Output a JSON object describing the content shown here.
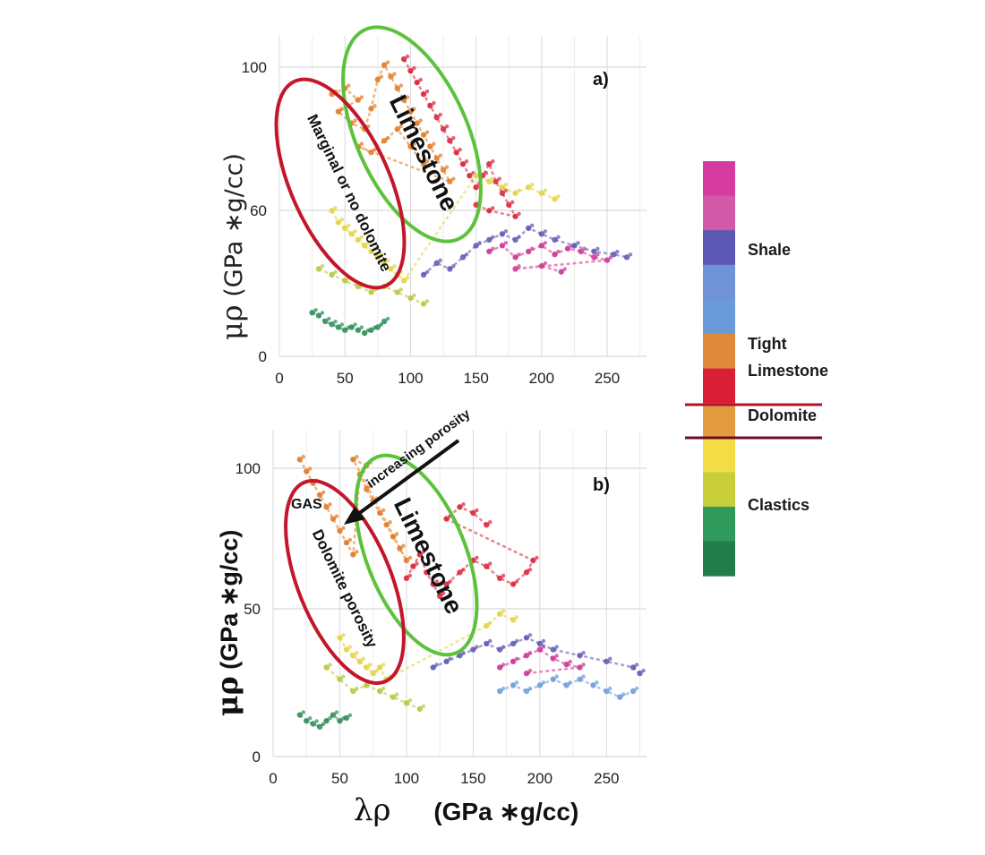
{
  "chart_data": [
    {
      "type": "scatter",
      "panel_label": "a)",
      "ylabel_symbol": "μρ",
      "ylabel_unit": "(GPa ∗g/cc)",
      "x_ticks": [
        "0",
        "50",
        "100",
        "150",
        "200",
        "250"
      ],
      "y_ticks": [
        "0",
        "60",
        "100"
      ],
      "xlim": [
        0,
        280
      ],
      "ylim": [
        0,
        110
      ],
      "grid": true,
      "annotations": {
        "green_ellipse_label": "Limestone",
        "red_ellipse_label": "Marginal or no dolomite"
      },
      "series": [
        {
          "color": "#e0781e",
          "points": [
            [
              40,
              90
            ],
            [
              50,
              92
            ],
            [
              60,
              88
            ],
            [
              45,
              84
            ],
            [
              55,
              80
            ],
            [
              65,
              78
            ],
            [
              70,
              85
            ],
            [
              75,
              95
            ],
            [
              80,
              100
            ],
            [
              85,
              96
            ],
            [
              90,
              92
            ],
            [
              95,
              88
            ],
            [
              100,
              84
            ],
            [
              105,
              80
            ],
            [
              110,
              76
            ],
            [
              115,
              72
            ],
            [
              120,
              68
            ],
            [
              125,
              64
            ],
            [
              130,
              60
            ],
            [
              60,
              72
            ],
            [
              70,
              70
            ],
            [
              80,
              74
            ],
            [
              90,
              78
            ],
            [
              100,
              72
            ],
            [
              110,
              66
            ]
          ]
        },
        {
          "color": "#d81f35",
          "points": [
            [
              95,
              102
            ],
            [
              100,
              98
            ],
            [
              105,
              94
            ],
            [
              110,
              90
            ],
            [
              115,
              86
            ],
            [
              120,
              82
            ],
            [
              125,
              78
            ],
            [
              130,
              74
            ],
            [
              135,
              70
            ],
            [
              140,
              66
            ],
            [
              145,
              62
            ],
            [
              150,
              58
            ],
            [
              155,
              62
            ],
            [
              160,
              66
            ],
            [
              165,
              60
            ],
            [
              170,
              56
            ],
            [
              175,
              52
            ],
            [
              180,
              48
            ],
            [
              160,
              50
            ],
            [
              150,
              52
            ]
          ]
        },
        {
          "color": "#cc2d8f",
          "points": [
            [
              160,
              36
            ],
            [
              170,
              38
            ],
            [
              180,
              34
            ],
            [
              190,
              36
            ],
            [
              200,
              38
            ],
            [
              210,
              35
            ],
            [
              220,
              37
            ],
            [
              230,
              36
            ],
            [
              240,
              34
            ],
            [
              250,
              33
            ],
            [
              180,
              30
            ],
            [
              200,
              31
            ],
            [
              215,
              29
            ]
          ]
        },
        {
          "color": "#5a55b0",
          "points": [
            [
              110,
              28
            ],
            [
              120,
              32
            ],
            [
              130,
              30
            ],
            [
              140,
              34
            ],
            [
              150,
              38
            ],
            [
              160,
              40
            ],
            [
              170,
              42
            ],
            [
              180,
              40
            ],
            [
              190,
              44
            ],
            [
              200,
              42
            ],
            [
              210,
              40
            ],
            [
              225,
              38
            ],
            [
              240,
              36
            ],
            [
              255,
              35
            ],
            [
              265,
              34
            ]
          ]
        },
        {
          "color": "#e3d23a",
          "points": [
            [
              40,
              50
            ],
            [
              45,
              46
            ],
            [
              50,
              44
            ],
            [
              55,
              42
            ],
            [
              60,
              40
            ],
            [
              65,
              38
            ],
            [
              70,
              36
            ],
            [
              75,
              34
            ],
            [
              80,
              32
            ],
            [
              85,
              30
            ],
            [
              90,
              28
            ],
            [
              95,
              26
            ],
            [
              150,
              62
            ],
            [
              160,
              60
            ],
            [
              170,
              58
            ],
            [
              180,
              56
            ],
            [
              190,
              58
            ],
            [
              200,
              56
            ],
            [
              210,
              54
            ]
          ]
        },
        {
          "color": "#b8c437",
          "points": [
            [
              30,
              30
            ],
            [
              40,
              28
            ],
            [
              50,
              26
            ],
            [
              60,
              24
            ],
            [
              70,
              22
            ],
            [
              80,
              24
            ],
            [
              90,
              22
            ],
            [
              100,
              20
            ],
            [
              110,
              18
            ]
          ]
        },
        {
          "color": "#2a8a55",
          "points": [
            [
              25,
              15
            ],
            [
              30,
              14
            ],
            [
              35,
              12
            ],
            [
              40,
              11
            ],
            [
              45,
              10
            ],
            [
              50,
              9
            ],
            [
              55,
              10
            ],
            [
              60,
              9
            ],
            [
              65,
              8
            ],
            [
              70,
              9
            ],
            [
              75,
              10
            ],
            [
              80,
              12
            ]
          ]
        }
      ]
    },
    {
      "type": "scatter",
      "panel_label": "b)",
      "ylabel_symbol": "μρ",
      "ylabel_unit": "(GPa ∗g/cc)",
      "xlabel_symbol": "λρ",
      "xlabel_unit": "(GPa ∗g/cc)",
      "x_ticks": [
        "0",
        "50",
        "100",
        "150",
        "200",
        "250"
      ],
      "y_ticks": [
        "0",
        "50",
        "100"
      ],
      "xlim": [
        0,
        280
      ],
      "ylim": [
        0,
        110
      ],
      "grid": true,
      "annotations": {
        "green_ellipse_label": "Limestone",
        "red_ellipse_gas_label": "GAS",
        "red_ellipse_label": "Dolomite porosity",
        "arrow_label": "increasing porosity"
      },
      "series": [
        {
          "color": "#e0781e",
          "points": [
            [
              20,
              100
            ],
            [
              25,
              96
            ],
            [
              30,
              92
            ],
            [
              35,
              88
            ],
            [
              40,
              84
            ],
            [
              45,
              80
            ],
            [
              50,
              76
            ],
            [
              55,
              72
            ],
            [
              60,
              68
            ],
            [
              65,
              95
            ],
            [
              70,
              90
            ],
            [
              75,
              86
            ],
            [
              80,
              82
            ],
            [
              85,
              78
            ],
            [
              90,
              74
            ],
            [
              95,
              70
            ],
            [
              100,
              66
            ],
            [
              60,
              100
            ],
            [
              70,
              98
            ]
          ]
        },
        {
          "color": "#d81f35",
          "points": [
            [
              100,
              60
            ],
            [
              105,
              64
            ],
            [
              110,
              68
            ],
            [
              115,
              62
            ],
            [
              120,
              58
            ],
            [
              125,
              54
            ],
            [
              130,
              58
            ],
            [
              140,
              62
            ],
            [
              150,
              66
            ],
            [
              160,
              64
            ],
            [
              170,
              60
            ],
            [
              180,
              58
            ],
            [
              190,
              62
            ],
            [
              195,
              66
            ],
            [
              130,
              80
            ],
            [
              140,
              84
            ],
            [
              150,
              82
            ],
            [
              160,
              78
            ]
          ]
        },
        {
          "color": "#cc2d8f",
          "points": [
            [
              170,
              30
            ],
            [
              180,
              32
            ],
            [
              190,
              34
            ],
            [
              200,
              36
            ],
            [
              210,
              33
            ],
            [
              220,
              31
            ],
            [
              230,
              30
            ],
            [
              190,
              28
            ]
          ]
        },
        {
          "color": "#5a55b0",
          "points": [
            [
              120,
              30
            ],
            [
              130,
              32
            ],
            [
              140,
              34
            ],
            [
              150,
              36
            ],
            [
              160,
              38
            ],
            [
              170,
              36
            ],
            [
              180,
              38
            ],
            [
              190,
              40
            ],
            [
              200,
              38
            ],
            [
              210,
              36
            ],
            [
              230,
              34
            ],
            [
              250,
              32
            ],
            [
              270,
              30
            ],
            [
              275,
              28
            ]
          ]
        },
        {
          "color": "#6a9ad8",
          "points": [
            [
              170,
              22
            ],
            [
              180,
              24
            ],
            [
              190,
              22
            ],
            [
              200,
              24
            ],
            [
              210,
              26
            ],
            [
              220,
              24
            ],
            [
              230,
              26
            ],
            [
              240,
              24
            ],
            [
              250,
              22
            ],
            [
              260,
              20
            ],
            [
              270,
              22
            ]
          ]
        },
        {
          "color": "#e3d23a",
          "points": [
            [
              50,
              40
            ],
            [
              55,
              36
            ],
            [
              60,
              34
            ],
            [
              65,
              32
            ],
            [
              70,
              30
            ],
            [
              75,
              28
            ],
            [
              80,
              30
            ],
            [
              85,
              26
            ],
            [
              160,
              44
            ],
            [
              170,
              48
            ],
            [
              180,
              46
            ]
          ]
        },
        {
          "color": "#b8c437",
          "points": [
            [
              40,
              30
            ],
            [
              50,
              26
            ],
            [
              60,
              22
            ],
            [
              70,
              24
            ],
            [
              80,
              22
            ],
            [
              90,
              20
            ],
            [
              100,
              18
            ],
            [
              110,
              16
            ]
          ]
        },
        {
          "color": "#2a8a55",
          "points": [
            [
              20,
              14
            ],
            [
              25,
              12
            ],
            [
              30,
              11
            ],
            [
              35,
              10
            ],
            [
              40,
              12
            ],
            [
              45,
              14
            ],
            [
              50,
              12
            ],
            [
              55,
              13
            ]
          ]
        }
      ]
    }
  ],
  "legend": {
    "colors": [
      "#d63ba0",
      "#d05aa8",
      "#5b57b3",
      "#6f93d6",
      "#6a9ad8",
      "#df8a3a",
      "#d81f35",
      "#e39a41",
      "#f2dd45",
      "#c9cf3a",
      "#2f9a5c",
      "#227d4a"
    ],
    "labels": [
      "Shale",
      "Tight",
      "Limestone",
      "Dolomite",
      "Clastics"
    ]
  }
}
